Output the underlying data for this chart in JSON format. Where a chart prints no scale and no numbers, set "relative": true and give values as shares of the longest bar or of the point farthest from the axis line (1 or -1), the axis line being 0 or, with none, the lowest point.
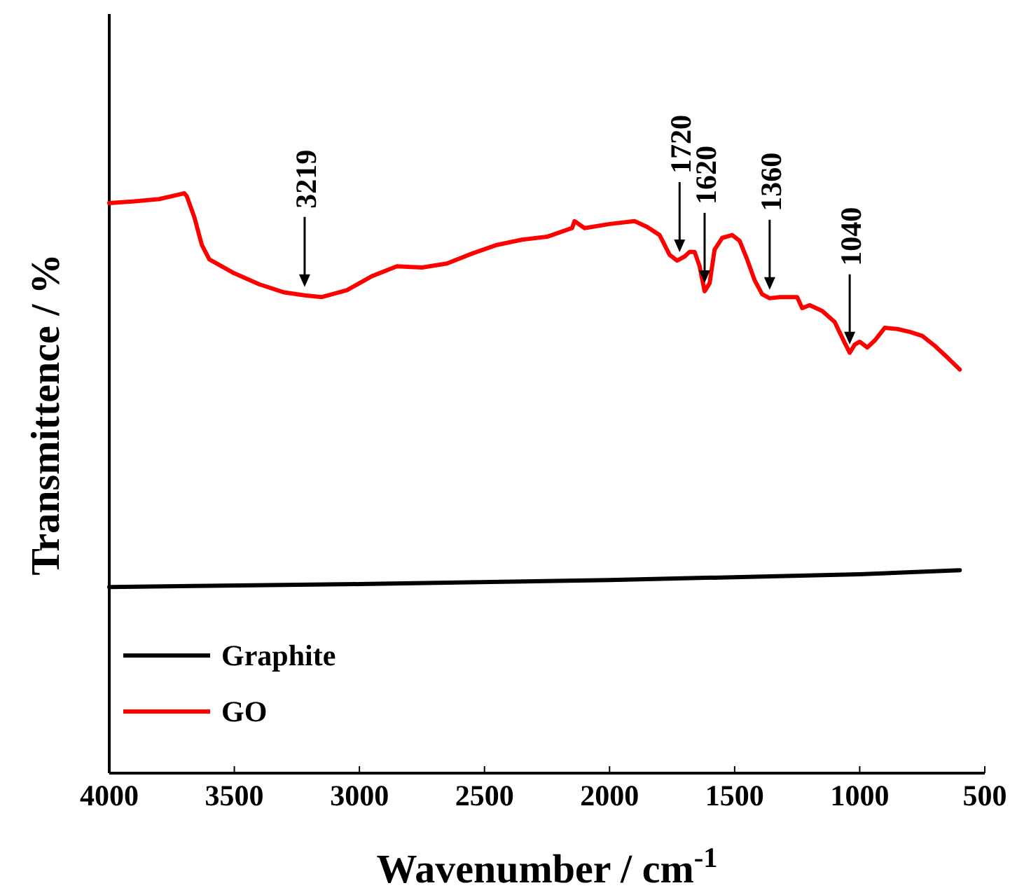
{
  "chart_data": {
    "type": "line",
    "relative": true,
    "xlabel": "Wavenumber / cm$^{-1}$",
    "ylabel": "Transmittence / %",
    "xlim": [
      4000,
      500
    ],
    "xticks": [
      4000,
      3500,
      3000,
      2500,
      2000,
      1500,
      1000,
      500
    ],
    "legend": "bottom left",
    "grid": false,
    "series": [
      {
        "name": "Graphite",
        "color": "#000000",
        "x": [
          4000,
          3000,
          2000,
          1000,
          600
        ],
        "values": [
          0.321,
          0.326,
          0.333,
          0.343,
          0.35
        ]
      },
      {
        "name": "GO",
        "color": "#ff0000",
        "x": [
          4000,
          3900,
          3800,
          3720,
          3700,
          3690,
          3660,
          3630,
          3600,
          3550,
          3500,
          3400,
          3300,
          3219,
          3150,
          3050,
          2950,
          2850,
          2750,
          2650,
          2550,
          2450,
          2350,
          2250,
          2150,
          2140,
          2100,
          2000,
          1900,
          1850,
          1800,
          1760,
          1730,
          1700,
          1680,
          1660,
          1640,
          1620,
          1600,
          1580,
          1550,
          1510,
          1480,
          1450,
          1420,
          1390,
          1360,
          1320,
          1280,
          1250,
          1230,
          1200,
          1150,
          1100,
          1060,
          1040,
          1020,
          1000,
          970,
          940,
          900,
          850,
          800,
          750,
          700,
          650,
          600
        ],
        "values": [
          0.983,
          0.986,
          0.99,
          0.998,
          1,
          0.995,
          0.959,
          0.911,
          0.886,
          0.874,
          0.862,
          0.843,
          0.829,
          0.824,
          0.821,
          0.833,
          0.857,
          0.874,
          0.872,
          0.879,
          0.896,
          0.911,
          0.92,
          0.925,
          0.94,
          0.952,
          0.94,
          0.947,
          0.952,
          0.942,
          0.928,
          0.894,
          0.884,
          0.891,
          0.899,
          0.899,
          0.874,
          0.831,
          0.845,
          0.903,
          0.923,
          0.928,
          0.918,
          0.886,
          0.85,
          0.826,
          0.819,
          0.821,
          0.821,
          0.821,
          0.802,
          0.807,
          0.797,
          0.778,
          0.742,
          0.725,
          0.739,
          0.744,
          0.734,
          0.746,
          0.768,
          0.766,
          0.761,
          0.754,
          0.737,
          0.717,
          0.696
        ]
      }
    ],
    "annotations": [
      {
        "text": "3219",
        "x": 3219,
        "y": 0.824
      },
      {
        "text": "1720",
        "x": 1720,
        "y": 0.884
      },
      {
        "text": "1620",
        "x": 1620,
        "y": 0.831
      },
      {
        "text": "1360",
        "x": 1360,
        "y": 0.819
      },
      {
        "text": "1040",
        "x": 1040,
        "y": 0.725
      }
    ]
  }
}
